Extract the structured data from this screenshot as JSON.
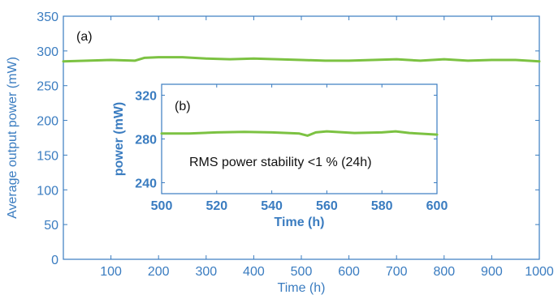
{
  "chart_data": [
    {
      "type": "line",
      "panel_label": "(a)",
      "xlabel": "Time (h)",
      "ylabel": "Average output power (mW)",
      "xlim": [
        0,
        1000
      ],
      "ylim": [
        0,
        350
      ],
      "xticks": [
        100,
        200,
        300,
        400,
        500,
        600,
        700,
        800,
        900,
        1000
      ],
      "yticks": [
        0,
        50,
        100,
        150,
        200,
        250,
        300,
        350
      ],
      "series": [
        {
          "x": [
            0,
            50,
            100,
            150,
            170,
            200,
            250,
            300,
            350,
            400,
            450,
            500,
            550,
            600,
            650,
            700,
            750,
            800,
            850,
            900,
            950,
            1000
          ],
          "y": [
            285,
            286,
            287,
            286,
            290,
            291,
            291,
            289,
            288,
            289,
            288,
            287,
            286,
            286,
            287,
            288,
            286,
            288,
            286,
            287,
            287,
            285
          ]
        }
      ]
    },
    {
      "type": "line",
      "panel_label": "(b)",
      "xlabel": "Time (h)",
      "ylabel": "power (mW)",
      "xlim": [
        500,
        600
      ],
      "ylim": [
        230,
        330
      ],
      "xticks": [
        500,
        520,
        540,
        560,
        580,
        600
      ],
      "yticks": [
        240,
        280,
        320
      ],
      "annotation": "RMS power stability <1 % (24h)",
      "series": [
        {
          "x": [
            500,
            510,
            520,
            530,
            540,
            550,
            553,
            556,
            560,
            570,
            580,
            585,
            590,
            600
          ],
          "y": [
            285,
            285,
            286,
            286.5,
            286,
            285,
            283,
            286,
            287,
            285.5,
            286,
            287,
            285.5,
            284
          ]
        }
      ]
    }
  ],
  "colors": {
    "axis": "#3a7cc0",
    "line": "#7cc242"
  }
}
